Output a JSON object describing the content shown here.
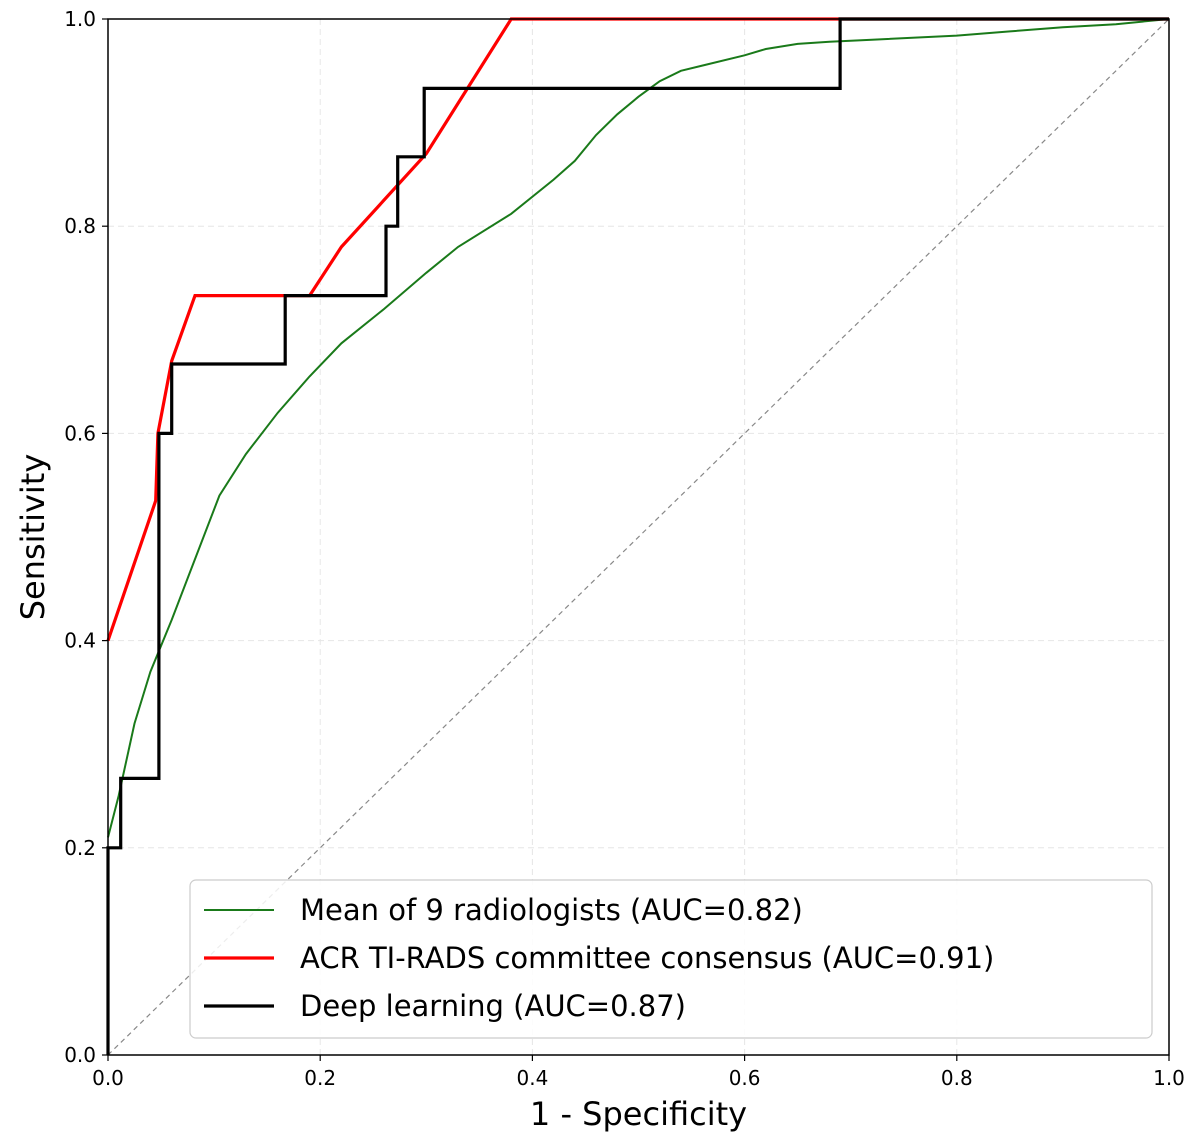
{
  "chart_data": {
    "type": "line",
    "xlabel": "1 - Specificity",
    "ylabel": "Sensitivity",
    "xlim": [
      0.0,
      1.0
    ],
    "ylim": [
      0.0,
      1.0
    ],
    "xticks": [
      "0.0",
      "0.2",
      "0.4",
      "0.6",
      "0.8",
      "1.0"
    ],
    "yticks": [
      "0.0",
      "0.2",
      "0.4",
      "0.6",
      "0.8",
      "1.0"
    ],
    "grid": true,
    "legend_position": "bottom-right",
    "reference_line": {
      "x": [
        0,
        1
      ],
      "y": [
        0,
        1
      ],
      "color": "#888888",
      "style": "dashed"
    },
    "series": [
      {
        "name": "Mean of 9 radiologists (AUC=0.82)",
        "color": "#1a7a1a",
        "x": [
          0.0,
          0.01,
          0.025,
          0.04,
          0.06,
          0.075,
          0.09,
          0.105,
          0.13,
          0.16,
          0.19,
          0.22,
          0.26,
          0.3,
          0.33,
          0.38,
          0.42,
          0.44,
          0.46,
          0.48,
          0.5,
          0.52,
          0.54,
          0.56,
          0.6,
          0.62,
          0.65,
          0.68,
          0.72,
          0.8,
          0.85,
          0.9,
          0.95,
          1.0
        ],
        "y": [
          0.21,
          0.25,
          0.32,
          0.37,
          0.42,
          0.46,
          0.5,
          0.54,
          0.58,
          0.62,
          0.655,
          0.687,
          0.72,
          0.755,
          0.78,
          0.812,
          0.845,
          0.863,
          0.888,
          0.908,
          0.925,
          0.94,
          0.95,
          0.955,
          0.965,
          0.971,
          0.976,
          0.978,
          0.98,
          0.984,
          0.988,
          0.992,
          0.995,
          1.0
        ]
      },
      {
        "name": "ACR TI-RADS committee consensus (AUC=0.91)",
        "color": "#ff0000",
        "x": [
          0.0,
          0.045,
          0.047,
          0.06,
          0.082,
          0.19,
          0.22,
          0.3,
          0.38,
          0.69,
          1.0
        ],
        "y": [
          0.4,
          0.535,
          0.6,
          0.67,
          0.733,
          0.733,
          0.78,
          0.87,
          1.0,
          1.0,
          1.0
        ]
      },
      {
        "name": "Deep learning (AUC=0.87)",
        "color": "#000000",
        "x": [
          0.0,
          0.0,
          0.012,
          0.012,
          0.048,
          0.048,
          0.06,
          0.06,
          0.167,
          0.167,
          0.262,
          0.262,
          0.273,
          0.273,
          0.298,
          0.298,
          0.69,
          0.69,
          1.0
        ],
        "y": [
          0.0,
          0.2,
          0.2,
          0.267,
          0.267,
          0.6,
          0.6,
          0.667,
          0.667,
          0.733,
          0.733,
          0.8,
          0.8,
          0.867,
          0.867,
          0.933,
          0.933,
          1.0,
          1.0
        ]
      }
    ]
  }
}
